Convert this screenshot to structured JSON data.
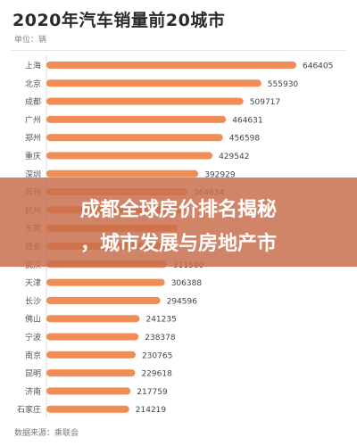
{
  "title": "2020年汽车销量前20城市",
  "unit": "单位：辆",
  "source": "数据来源：乘联会",
  "banner": {
    "line1": "成都全球房价排名揭秘",
    "line2": "，城市发展与房地产市"
  },
  "colors": {
    "bar": "#f08d55",
    "banner": "#c86e4b"
  },
  "chart_data": {
    "type": "bar",
    "orientation": "horizontal",
    "title": "2020年汽车销量前20城市",
    "xlabel": "",
    "ylabel": "",
    "xlim": [
      0,
      646405
    ],
    "grid": false,
    "categories": [
      "上海",
      "北京",
      "成都",
      "广州",
      "郑州",
      "重庆",
      "深圳",
      "苏州",
      "杭州",
      "东莞",
      "西安",
      "武汉",
      "天津",
      "长沙",
      "佛山",
      "宁波",
      "南京",
      "昆明",
      "济南",
      "石家庄"
    ],
    "values": [
      646405,
      555930,
      509717,
      464631,
      456598,
      429542,
      392929,
      364634,
      352000,
      339000,
      330000,
      311580,
      306388,
      294596,
      241235,
      238378,
      230765,
      229618,
      217759,
      214219
    ],
    "labels": [
      "646405",
      "555930",
      "509717",
      "464631",
      "456598",
      "429542",
      "392929",
      "364634",
      "",
      "",
      "",
      "311580",
      "306388",
      "294596",
      "241235",
      "238378",
      "230765",
      "229618",
      "217759",
      "214219"
    ]
  }
}
